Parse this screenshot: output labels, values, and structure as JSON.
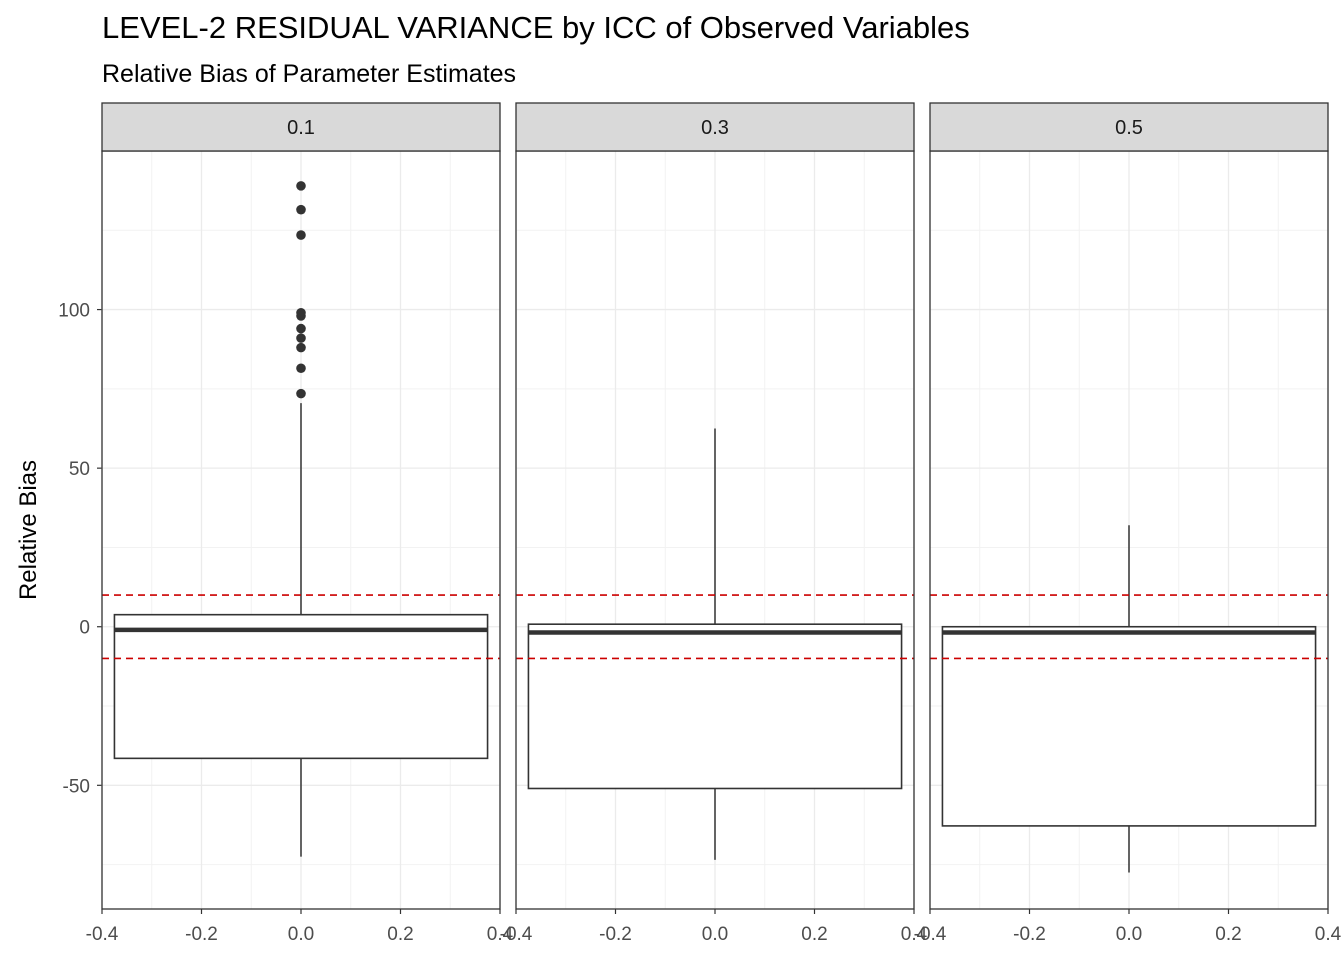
{
  "chart_data": {
    "type": "boxplot",
    "title": "LEVEL-2 RESIDUAL VARIANCE by ICC of Observed Variables",
    "subtitle": "Relative Bias of Parameter Estimates",
    "ylabel": "Relative Bias",
    "xlabel": "",
    "xlim": [
      -0.4,
      0.4
    ],
    "ylim": [
      -89,
      150
    ],
    "x_ticks": [
      -0.4,
      -0.2,
      0.0,
      0.2,
      0.4
    ],
    "x_tick_labels": [
      "-0.4",
      "-0.2",
      "0.0",
      "0.2",
      "0.4"
    ],
    "y_ticks": [
      -50,
      0,
      50,
      100
    ],
    "y_tick_labels": [
      "-50",
      "0",
      "50",
      "100"
    ],
    "reference_lines": [
      10,
      -10
    ],
    "reference_line_color": "#cc0000",
    "box_color": "#333333",
    "grid": true,
    "facets": [
      {
        "label": "0.1",
        "box_x_range": [
          -0.375,
          0.375
        ],
        "q1": -41.5,
        "median": -1,
        "q3": 3.8,
        "whisker_low": -72.5,
        "whisker_high": 70.5,
        "outliers": [
          73.5,
          81.5,
          88,
          91,
          94,
          98,
          99,
          123.5,
          131.5,
          139
        ]
      },
      {
        "label": "0.3",
        "box_x_range": [
          -0.375,
          0.375
        ],
        "q1": -51,
        "median": -1.8,
        "q3": 0.8,
        "whisker_low": -73.5,
        "whisker_high": 62.5,
        "outliers": []
      },
      {
        "label": "0.5",
        "box_x_range": [
          -0.375,
          0.375
        ],
        "q1": -62.8,
        "median": -1.8,
        "q3": 0,
        "whisker_low": -77.5,
        "whisker_high": 32,
        "outliers": []
      }
    ]
  }
}
